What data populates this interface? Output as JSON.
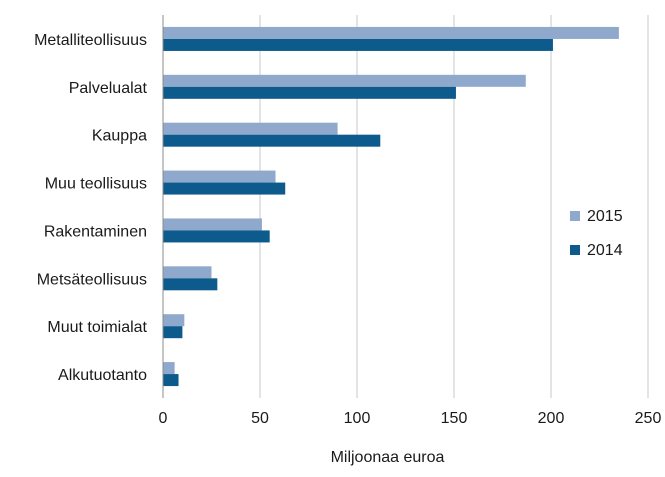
{
  "chart_data": {
    "type": "bar",
    "orientation": "horizontal",
    "categories": [
      "Metalliteollisuus",
      "Palvelualat",
      "Kauppa",
      "Muu teollisuus",
      "Rakentaminen",
      "Metsäteollisuus",
      "Muut toimialat",
      "Alkutuotanto"
    ],
    "series": [
      {
        "name": "2015",
        "color": "#8FA9CC",
        "values": [
          235,
          187,
          90,
          58,
          51,
          25,
          11,
          6
        ]
      },
      {
        "name": "2014",
        "color": "#0D5A8C",
        "values": [
          201,
          151,
          112,
          63,
          55,
          28,
          10,
          8
        ]
      }
    ],
    "xlabel": "Miljoonaa euroa",
    "ylabel": "",
    "xlim": [
      0,
      250
    ],
    "xticks": [
      "0",
      "50",
      "100",
      "150",
      "200",
      "250"
    ],
    "grid": "vertical",
    "legend": "right"
  }
}
